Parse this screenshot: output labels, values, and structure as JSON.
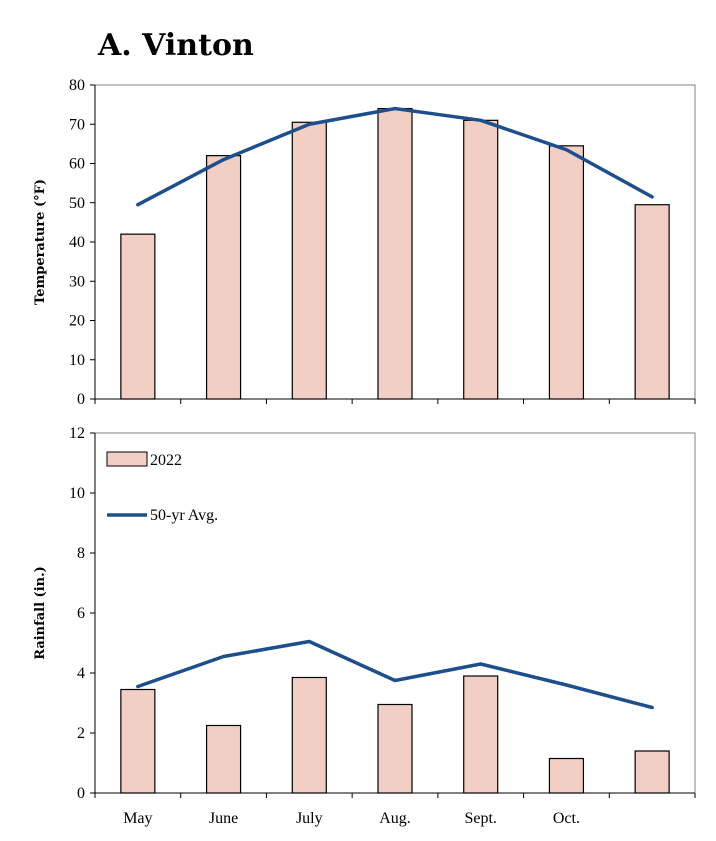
{
  "colors": {
    "bar_fill": "#f2cfc4",
    "line": "#1f4e8c"
  },
  "chart_data": [
    {
      "type": "bar",
      "title": "A. Vinton",
      "ylabel": "Temperature (°F)",
      "ylim": [
        0,
        80
      ],
      "yticks": [
        "0",
        "10",
        "20",
        "30",
        "40",
        "50",
        "60",
        "70",
        "80"
      ],
      "categories": [
        "May",
        "June",
        "July",
        "Aug.",
        "Sept.",
        "Oct.",
        ""
      ],
      "series": [
        {
          "name": "2022",
          "type": "bar",
          "values": [
            42,
            62,
            70.5,
            74,
            71,
            64.5,
            49.5
          ]
        },
        {
          "name": "50-yr Avg.",
          "type": "line",
          "values": [
            49.5,
            61,
            70,
            74,
            71,
            63.5,
            51.5
          ]
        }
      ]
    },
    {
      "type": "bar",
      "ylabel": "Rainfall (in.)",
      "ylim": [
        0,
        12
      ],
      "yticks": [
        "0",
        "2",
        "4",
        "6",
        "8",
        "10",
        "12"
      ],
      "categories": [
        "May",
        "June",
        "July",
        "Aug.",
        "Sept.",
        "Oct.",
        ""
      ],
      "legend": {
        "position": "top-left",
        "entries": [
          "2022",
          "50-yr Avg."
        ]
      },
      "series": [
        {
          "name": "2022",
          "type": "bar",
          "values": [
            3.45,
            2.25,
            3.85,
            2.95,
            3.9,
            1.15,
            1.4
          ]
        },
        {
          "name": "50-yr Avg.",
          "type": "line",
          "values": [
            3.55,
            4.55,
            5.05,
            3.75,
            4.3,
            3.6,
            2.85
          ]
        }
      ]
    }
  ]
}
